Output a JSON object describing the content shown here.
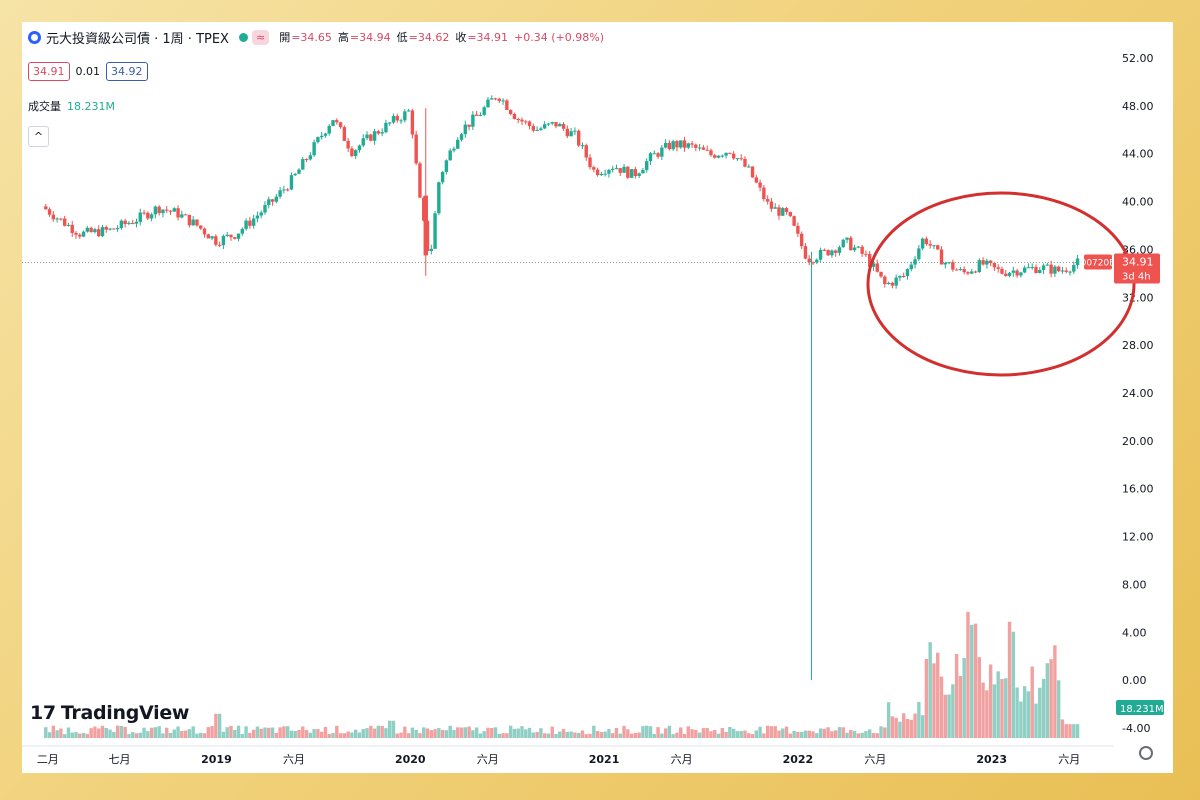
{
  "header": {
    "title": "元大投資級公司債 · 1周 · TPEX",
    "wave_glyph": "≈",
    "open_label": "開",
    "open": "=34.65",
    "high_label": "高",
    "high": "=34.94",
    "low_label": "低",
    "low": "=34.62",
    "close_label": "收",
    "close": "=34.91",
    "change": "+0.34 (+0.98%)"
  },
  "quote_boxes": {
    "bid": "34.91",
    "spread": "0.01",
    "ask": "34.92"
  },
  "volume_panel": {
    "label": "成交量",
    "value": "18.231M"
  },
  "collapse_glyph": "^",
  "brand": {
    "name": "TradingView",
    "mark": "17"
  },
  "colors": {
    "up": "#22ab94",
    "down": "#ef5350",
    "vol_up": "#8fcfc4",
    "vol_down": "#f2a1a1",
    "annotation": "#d32f2f",
    "accent": "#2962ff"
  },
  "chart_data": {
    "type": "candlestick",
    "interval": "1周",
    "y_ticks": [
      "52.00",
      "48.00",
      "44.00",
      "40.00",
      "36.00",
      "32.00",
      "28.00",
      "24.00",
      "20.00",
      "16.00",
      "12.00",
      "8.00",
      "4.00",
      "0.00",
      "-4.00"
    ],
    "ylim": [
      -4,
      52
    ],
    "x_ticks": [
      {
        "label": "二月",
        "t": 0.03
      },
      {
        "label": "七月",
        "t": 0.4
      },
      {
        "label": "2019",
        "t": 0.9
      },
      {
        "label": "六月",
        "t": 1.3
      },
      {
        "label": "2020",
        "t": 1.9
      },
      {
        "label": "六月",
        "t": 2.3
      },
      {
        "label": "2021",
        "t": 2.9
      },
      {
        "label": "六月",
        "t": 3.3
      },
      {
        "label": "2022",
        "t": 3.9
      },
      {
        "label": "六月",
        "t": 4.3
      },
      {
        "label": "2023",
        "t": 4.9
      },
      {
        "label": "六月",
        "t": 5.3
      }
    ],
    "price_series": [
      {
        "t": 0.0,
        "v": 39.6
      },
      {
        "t": 0.1,
        "v": 38.4
      },
      {
        "t": 0.2,
        "v": 37.3
      },
      {
        "t": 0.35,
        "v": 37.6
      },
      {
        "t": 0.5,
        "v": 38.6
      },
      {
        "t": 0.6,
        "v": 39.5
      },
      {
        "t": 0.7,
        "v": 39.0
      },
      {
        "t": 0.8,
        "v": 38.0
      },
      {
        "t": 0.9,
        "v": 36.7
      },
      {
        "t": 1.0,
        "v": 37.3
      },
      {
        "t": 1.1,
        "v": 38.7
      },
      {
        "t": 1.2,
        "v": 40.2
      },
      {
        "t": 1.3,
        "v": 42.0
      },
      {
        "t": 1.4,
        "v": 44.5
      },
      {
        "t": 1.5,
        "v": 47.0
      },
      {
        "t": 1.6,
        "v": 44.2
      },
      {
        "t": 1.7,
        "v": 45.5
      },
      {
        "t": 1.8,
        "v": 46.6
      },
      {
        "t": 1.9,
        "v": 47.6
      },
      {
        "t": 1.95,
        "v": 40.0
      },
      {
        "t": 2.0,
        "v": 35.0
      },
      {
        "t": 2.05,
        "v": 42.0
      },
      {
        "t": 2.15,
        "v": 45.8
      },
      {
        "t": 2.25,
        "v": 47.2
      },
      {
        "t": 2.35,
        "v": 49.0
      },
      {
        "t": 2.45,
        "v": 47.0
      },
      {
        "t": 2.55,
        "v": 46.0
      },
      {
        "t": 2.65,
        "v": 46.5
      },
      {
        "t": 2.75,
        "v": 45.5
      },
      {
        "t": 2.85,
        "v": 42.5
      },
      {
        "t": 2.95,
        "v": 43.0
      },
      {
        "t": 3.05,
        "v": 42.2
      },
      {
        "t": 3.15,
        "v": 43.8
      },
      {
        "t": 3.25,
        "v": 44.8
      },
      {
        "t": 3.35,
        "v": 44.6
      },
      {
        "t": 3.45,
        "v": 43.9
      },
      {
        "t": 3.55,
        "v": 44.3
      },
      {
        "t": 3.65,
        "v": 42.5
      },
      {
        "t": 3.75,
        "v": 39.6
      },
      {
        "t": 3.85,
        "v": 38.8
      },
      {
        "t": 3.95,
        "v": 35.2
      },
      {
        "t": 4.05,
        "v": 35.8
      },
      {
        "t": 4.15,
        "v": 36.6
      },
      {
        "t": 4.25,
        "v": 35.4
      },
      {
        "t": 4.35,
        "v": 33.0
      },
      {
        "t": 4.45,
        "v": 33.8
      },
      {
        "t": 4.55,
        "v": 37.0
      },
      {
        "t": 4.65,
        "v": 35.0
      },
      {
        "t": 4.75,
        "v": 34.0
      },
      {
        "t": 4.85,
        "v": 34.8
      },
      {
        "t": 4.95,
        "v": 34.1
      },
      {
        "t": 5.05,
        "v": 34.3
      },
      {
        "t": 5.15,
        "v": 34.5
      },
      {
        "t": 5.25,
        "v": 34.2
      },
      {
        "t": 5.35,
        "v": 34.9
      }
    ],
    "spike_low": {
      "t": 3.97,
      "v": 0.0
    },
    "current_price": "34.91",
    "price_tag_symbol": "00720B",
    "price_tag_countdown": "3d 4h",
    "volume_value_label": "18.231M",
    "volume_peaks": [
      {
        "t": 4.6,
        "v": 8.5
      },
      {
        "t": 4.7,
        "v": 6.0
      },
      {
        "t": 4.8,
        "v": 10.0
      },
      {
        "t": 4.9,
        "v": 7.0
      },
      {
        "t": 5.0,
        "v": 9.2
      },
      {
        "t": 5.1,
        "v": 5.5
      },
      {
        "t": 5.2,
        "v": 7.2
      }
    ],
    "annotation": "circle highlight around 2022–2023 prices"
  }
}
